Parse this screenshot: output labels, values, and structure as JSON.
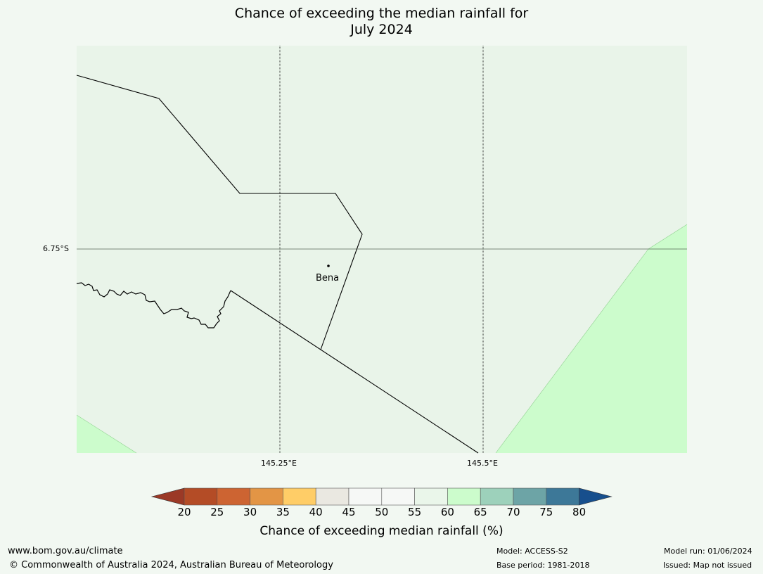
{
  "title": {
    "line1": "Chance of exceeding the median rainfall for",
    "line2": "July 2024"
  },
  "map": {
    "lat_label": "6.75°S",
    "lon_labels": [
      "145.25°E",
      "145.5°E"
    ],
    "place": {
      "name": "Bena"
    },
    "colors": {
      "background_50_60": "#e9f4e9",
      "band_60_65": "#ccfccc",
      "border_line": "#000000",
      "gridline": "#000000"
    }
  },
  "colorbar": {
    "title": "Chance of exceeding median rainfall (%)",
    "ticks": [
      "20",
      "25",
      "30",
      "35",
      "40",
      "45",
      "50",
      "55",
      "60",
      "65",
      "70",
      "75",
      "80"
    ],
    "colors": [
      "#b44c26",
      "#cd6432",
      "#e39545",
      "#ffcd67",
      "#eae8e1",
      "#f6f8f6",
      "#f6f8f6",
      "#eaf6ea",
      "#ccfccc",
      "#9dd1bb",
      "#6da4a6",
      "#3d7898"
    ],
    "extend_low_color": "#9b3926",
    "extend_high_color": "#174f8d"
  },
  "footer": {
    "url": "www.bom.gov.au/climate",
    "copyright": "© Commonwealth of Australia 2024, Australian Bureau of Meteorology",
    "model": "Model: ACCESS-S2",
    "base_period": "Base period: 1981-2018",
    "model_run": "Model run: 01/06/2024",
    "issued": "Issued: Map not issued"
  }
}
